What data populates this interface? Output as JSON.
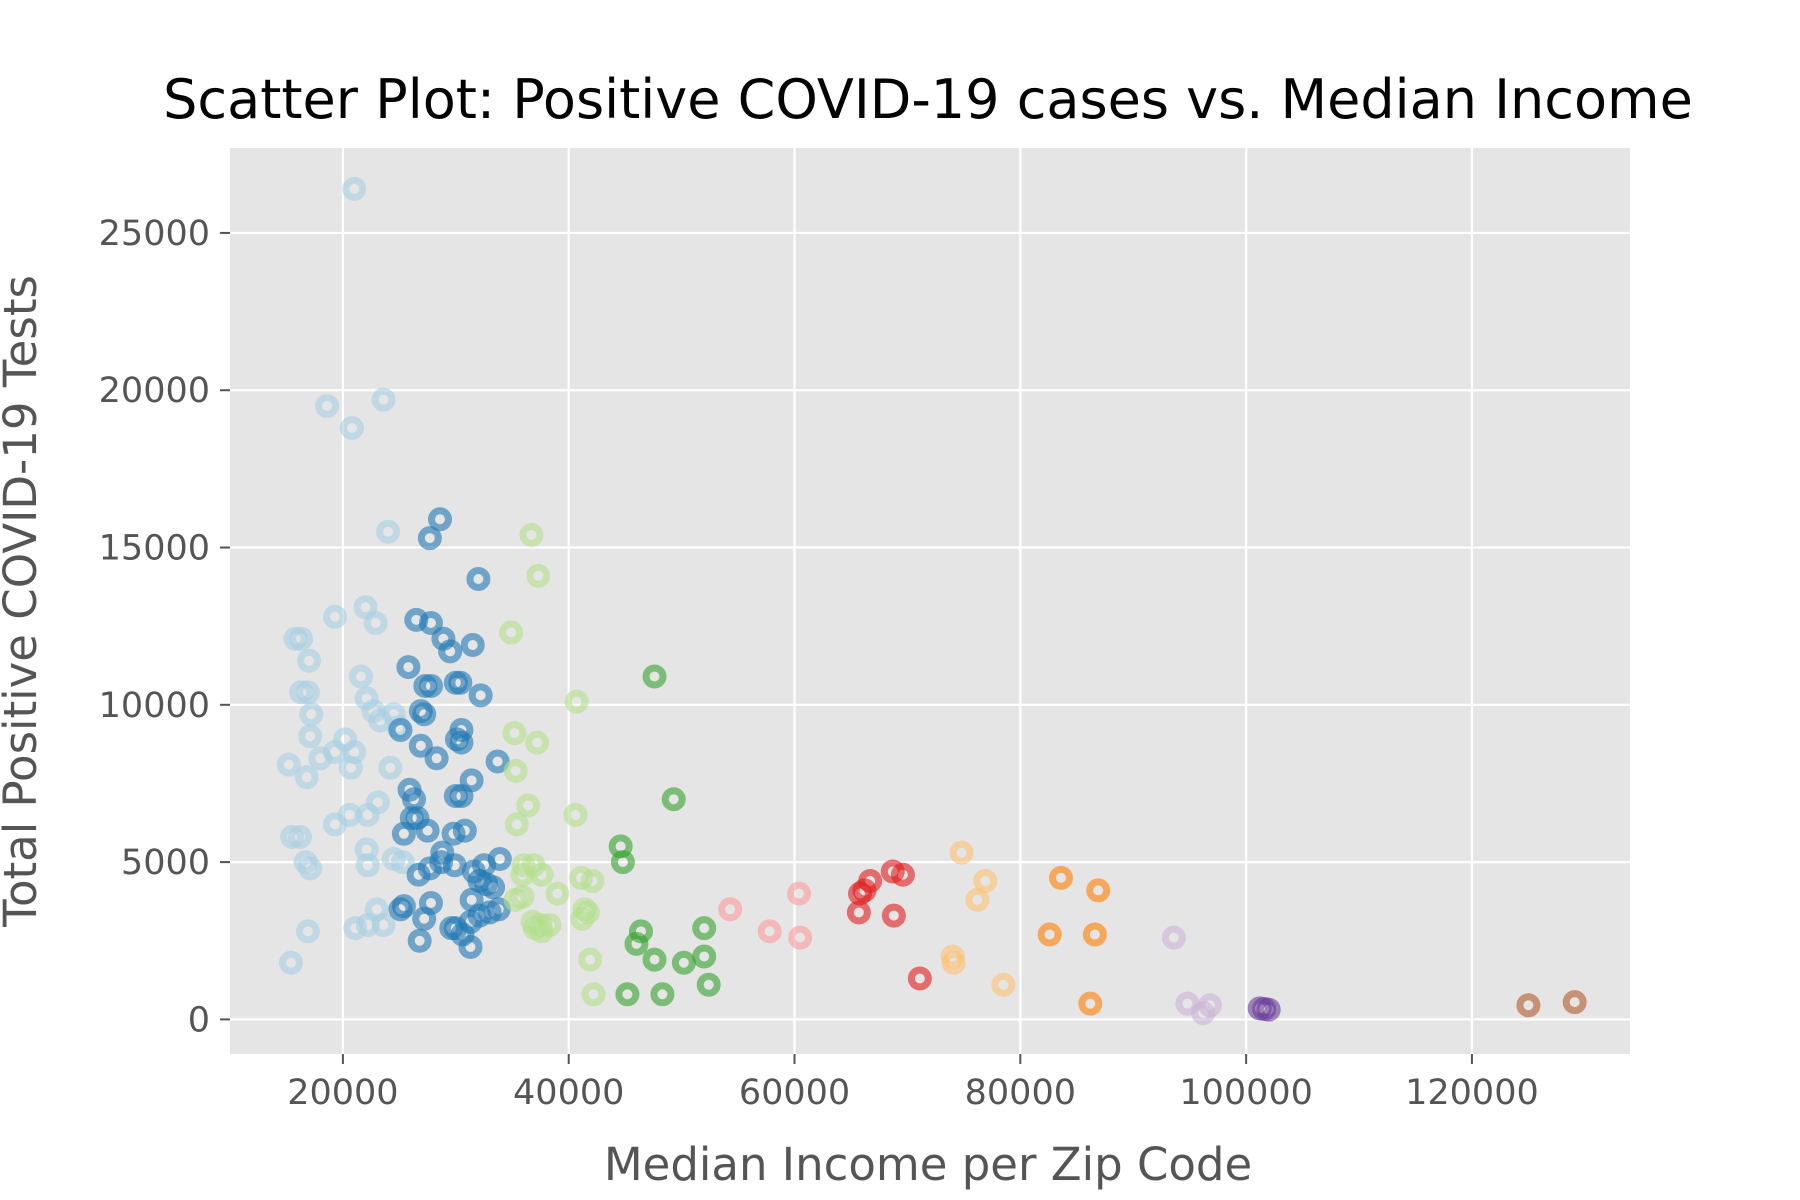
{
  "chart_data": {
    "type": "scatter",
    "title": "Scatter Plot: Positive COVID-19 cases vs. Median Income",
    "xlabel": "Median Income per Zip Code",
    "ylabel": "Total Positive COVID-19 Tests",
    "xlim": [
      10000,
      134000
    ],
    "ylim": [
      -1100,
      27700
    ],
    "xticks": [
      20000,
      40000,
      60000,
      80000,
      100000,
      120000
    ],
    "xtick_labels": [
      "20000",
      "40000",
      "60000",
      "80000",
      "100000",
      "120000"
    ],
    "yticks": [
      0,
      5000,
      10000,
      15000,
      20000,
      25000
    ],
    "ytick_labels": [
      "0",
      "5000",
      "10000",
      "15000",
      "20000",
      "25000"
    ],
    "grid": true,
    "legend": false,
    "background": "#e5e5e5",
    "series": [
      {
        "color": "#a6cee3",
        "points": [
          [
            21000,
            26400
          ],
          [
            18600,
            19500
          ],
          [
            23600,
            19700
          ],
          [
            20800,
            18800
          ],
          [
            24000,
            15500
          ],
          [
            19300,
            12800
          ],
          [
            22000,
            13100
          ],
          [
            22900,
            12600
          ],
          [
            15800,
            12100
          ],
          [
            16300,
            12100
          ],
          [
            17000,
            11400
          ],
          [
            21600,
            10900
          ],
          [
            16300,
            10400
          ],
          [
            16900,
            10400
          ],
          [
            22100,
            10200
          ],
          [
            22700,
            9800
          ],
          [
            24500,
            9700
          ],
          [
            17200,
            9700
          ],
          [
            23300,
            9500
          ],
          [
            24900,
            9300
          ],
          [
            17100,
            9000
          ],
          [
            20200,
            8900
          ],
          [
            21000,
            8500
          ],
          [
            19300,
            8500
          ],
          [
            18000,
            8300
          ],
          [
            15200,
            8100
          ],
          [
            20700,
            8000
          ],
          [
            24200,
            8000
          ],
          [
            16800,
            7700
          ],
          [
            23100,
            6900
          ],
          [
            20600,
            6500
          ],
          [
            22200,
            6500
          ],
          [
            19300,
            6200
          ],
          [
            15500,
            5800
          ],
          [
            16200,
            5800
          ],
          [
            22100,
            5400
          ],
          [
            24500,
            5100
          ],
          [
            16700,
            5000
          ],
          [
            17100,
            4800
          ],
          [
            22200,
            4900
          ],
          [
            25300,
            5000
          ],
          [
            23000,
            3500
          ],
          [
            23600,
            3000
          ],
          [
            22200,
            3000
          ],
          [
            21100,
            2900
          ],
          [
            16900,
            2800
          ],
          [
            15400,
            1800
          ]
        ]
      },
      {
        "color": "#1f78b4",
        "points": [
          [
            28600,
            15900
          ],
          [
            27700,
            15300
          ],
          [
            32000,
            14000
          ],
          [
            26500,
            12700
          ],
          [
            27800,
            12600
          ],
          [
            28900,
            12100
          ],
          [
            31500,
            11900
          ],
          [
            29500,
            11700
          ],
          [
            25800,
            11200
          ],
          [
            27300,
            10600
          ],
          [
            27800,
            10600
          ],
          [
            30000,
            10700
          ],
          [
            30400,
            10700
          ],
          [
            32200,
            10300
          ],
          [
            26900,
            9800
          ],
          [
            27200,
            9700
          ],
          [
            25100,
            9200
          ],
          [
            30500,
            9200
          ],
          [
            30100,
            8900
          ],
          [
            30500,
            8800
          ],
          [
            26900,
            8700
          ],
          [
            28300,
            8300
          ],
          [
            33700,
            8200
          ],
          [
            31400,
            7600
          ],
          [
            25900,
            7300
          ],
          [
            26300,
            7000
          ],
          [
            30000,
            7100
          ],
          [
            30500,
            7100
          ],
          [
            26100,
            6400
          ],
          [
            26600,
            6400
          ],
          [
            25400,
            5900
          ],
          [
            27500,
            6000
          ],
          [
            29800,
            5900
          ],
          [
            30800,
            6000
          ],
          [
            28800,
            5300
          ],
          [
            28700,
            5000
          ],
          [
            33900,
            5100
          ],
          [
            27700,
            4800
          ],
          [
            29900,
            4900
          ],
          [
            31600,
            4700
          ],
          [
            32500,
            4900
          ],
          [
            26700,
            4600
          ],
          [
            32100,
            4400
          ],
          [
            32700,
            4300
          ],
          [
            33300,
            4200
          ],
          [
            31400,
            3800
          ],
          [
            27800,
            3700
          ],
          [
            25100,
            3500
          ],
          [
            25400,
            3600
          ],
          [
            33800,
            3500
          ],
          [
            33000,
            3400
          ],
          [
            32100,
            3300
          ],
          [
            27200,
            3200
          ],
          [
            31300,
            3100
          ],
          [
            29600,
            2900
          ],
          [
            30000,
            2900
          ],
          [
            30600,
            2700
          ],
          [
            26800,
            2500
          ],
          [
            31300,
            2300
          ]
        ]
      },
      {
        "color": "#b2df8a",
        "points": [
          [
            36700,
            15400
          ],
          [
            37300,
            14100
          ],
          [
            34900,
            12300
          ],
          [
            40700,
            10100
          ],
          [
            35200,
            9100
          ],
          [
            37200,
            8800
          ],
          [
            35300,
            7900
          ],
          [
            36400,
            6800
          ],
          [
            40600,
            6500
          ],
          [
            35400,
            6200
          ],
          [
            36000,
            4900
          ],
          [
            36900,
            4900
          ],
          [
            35900,
            4600
          ],
          [
            37600,
            4600
          ],
          [
            39000,
            4000
          ],
          [
            35300,
            3800
          ],
          [
            35900,
            3900
          ],
          [
            41100,
            4500
          ],
          [
            42100,
            4400
          ],
          [
            41400,
            3500
          ],
          [
            41700,
            3400
          ],
          [
            36800,
            3100
          ],
          [
            37500,
            3000
          ],
          [
            38300,
            3000
          ],
          [
            37000,
            2900
          ],
          [
            37600,
            2800
          ],
          [
            41200,
            3200
          ],
          [
            41900,
            1900
          ],
          [
            42200,
            800
          ]
        ]
      },
      {
        "color": "#33a02c",
        "points": [
          [
            47600,
            10900
          ],
          [
            49300,
            7000
          ],
          [
            44600,
            5500
          ],
          [
            44800,
            5000
          ],
          [
            46400,
            2800
          ],
          [
            46000,
            2400
          ],
          [
            47600,
            1900
          ],
          [
            52000,
            2900
          ],
          [
            52000,
            2000
          ],
          [
            50200,
            1800
          ],
          [
            52400,
            1100
          ],
          [
            45200,
            800
          ],
          [
            48300,
            800
          ]
        ]
      },
      {
        "color": "#fb9a99",
        "points": [
          [
            54300,
            3500
          ],
          [
            60400,
            4000
          ],
          [
            57800,
            2800
          ],
          [
            60500,
            2600
          ]
        ]
      },
      {
        "color": "#e31a1c",
        "points": [
          [
            68700,
            4700
          ],
          [
            69600,
            4600
          ],
          [
            66700,
            4400
          ],
          [
            65800,
            4000
          ],
          [
            66200,
            4100
          ],
          [
            65700,
            3400
          ],
          [
            68800,
            3300
          ],
          [
            71100,
            1300
          ]
        ]
      },
      {
        "color": "#fdbf6f",
        "points": [
          [
            74800,
            5300
          ],
          [
            76900,
            4400
          ],
          [
            76200,
            3800
          ],
          [
            74000,
            2000
          ],
          [
            74100,
            1800
          ],
          [
            78500,
            1100
          ]
        ]
      },
      {
        "color": "#ff7f00",
        "points": [
          [
            83600,
            4500
          ],
          [
            86900,
            4100
          ],
          [
            82600,
            2700
          ],
          [
            86600,
            2700
          ],
          [
            86200,
            500
          ]
        ]
      },
      {
        "color": "#cab2d6",
        "points": [
          [
            93600,
            2600
          ],
          [
            94800,
            500
          ],
          [
            96800,
            450
          ],
          [
            96200,
            200
          ]
        ]
      },
      {
        "color": "#6a3d9a",
        "points": [
          [
            101200,
            350
          ],
          [
            101600,
            330
          ],
          [
            102000,
            310
          ]
        ]
      },
      {
        "color": "#b15928",
        "points": [
          [
            125000,
            450
          ],
          [
            129100,
            550
          ]
        ]
      }
    ]
  }
}
